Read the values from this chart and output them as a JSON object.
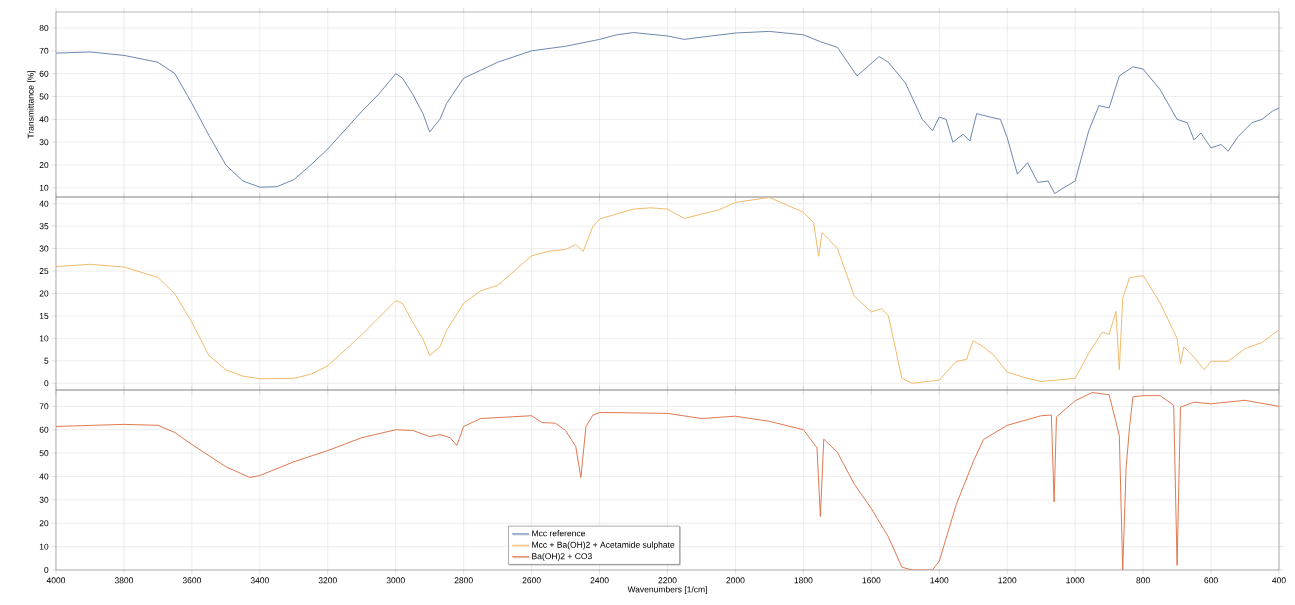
{
  "chart_data": [
    {
      "type": "line",
      "ylabel": "Transmittance [%]",
      "xlim": [
        4000,
        400
      ],
      "xticks": [
        4000,
        3800,
        3600,
        3400,
        3200,
        3000,
        2800,
        2600,
        2400,
        2200,
        2000,
        1800,
        1600,
        1400,
        1200,
        1000,
        800,
        600,
        400
      ],
      "ylim": [
        6,
        87
      ],
      "yticks": [
        10,
        20,
        30,
        40,
        50,
        60,
        70,
        80
      ],
      "grid": true,
      "tick_labels": "y",
      "series": [
        {
          "name": "Mcc reference",
          "color": "#5b7ba6",
          "x": [
            4000,
            3900,
            3800,
            3700,
            3650,
            3600,
            3550,
            3500,
            3450,
            3400,
            3350,
            3300,
            3250,
            3200,
            3100,
            3050,
            3000,
            2980,
            2950,
            2920,
            2900,
            2870,
            2850,
            2800,
            2750,
            2700,
            2600,
            2500,
            2400,
            2350,
            2300,
            2200,
            2150,
            2100,
            2000,
            1900,
            1800,
            1750,
            1700,
            1642,
            1577,
            1550,
            1500,
            1450,
            1420,
            1400,
            1380,
            1360,
            1330,
            1310,
            1290,
            1250,
            1220,
            1200,
            1170,
            1140,
            1110,
            1080,
            1060,
            1040,
            1000,
            960,
            930,
            900,
            870,
            830,
            800,
            750,
            700,
            670,
            650,
            630,
            600,
            570,
            550,
            520,
            480,
            450,
            420,
            400
          ],
          "values": [
            69,
            69.5,
            68,
            65,
            60,
            47,
            33,
            20,
            13,
            10.3,
            10.5,
            13.6,
            20,
            27,
            43.5,
            51,
            60,
            58,
            51,
            42.6,
            34.5,
            40,
            47,
            58,
            61.5,
            65,
            70,
            72,
            75,
            77,
            78,
            76.5,
            75,
            76,
            77.8,
            78.5,
            77,
            74,
            71.5,
            59,
            67.5,
            65,
            56,
            40,
            35,
            41,
            40,
            30,
            33.5,
            30.5,
            42.5,
            41,
            40,
            32,
            16,
            21,
            12.4,
            13,
            7.5,
            9.5,
            13,
            35,
            46,
            45,
            59,
            63,
            62,
            53,
            40,
            38.5,
            31,
            34,
            27.5,
            29,
            26,
            32.5,
            38.5,
            40,
            43.5,
            45
          ]
        }
      ]
    },
    {
      "type": "line",
      "xlim": [
        4000,
        400
      ],
      "xticks": [
        4000,
        3800,
        3600,
        3400,
        3200,
        3000,
        2800,
        2600,
        2400,
        2200,
        2000,
        1800,
        1600,
        1400,
        1200,
        1000,
        800,
        600,
        400
      ],
      "ylim": [
        -1.5,
        41.5
      ],
      "yticks": [
        0,
        5,
        10,
        15,
        20,
        25,
        30,
        35,
        40
      ],
      "grid": true,
      "tick_labels": "y",
      "series": [
        {
          "name": "Mcc + Ba(OH)2 + Acetamide sulphate",
          "color": "#f0b25a",
          "x": [
            4000,
            3900,
            3800,
            3700,
            3650,
            3600,
            3550,
            3500,
            3450,
            3400,
            3300,
            3250,
            3200,
            3100,
            3000,
            2980,
            2950,
            2920,
            2900,
            2870,
            2850,
            2800,
            2750,
            2700,
            2600,
            2550,
            2500,
            2470,
            2448,
            2420,
            2400,
            2300,
            2250,
            2200,
            2150,
            2100,
            2050,
            2000,
            1900,
            1800,
            1770,
            1755,
            1745,
            1700,
            1650,
            1600,
            1570,
            1550,
            1510,
            1480,
            1400,
            1350,
            1320,
            1300,
            1270,
            1240,
            1200,
            1150,
            1100,
            1000,
            960,
            920,
            900,
            880,
            870,
            860,
            840,
            800,
            750,
            700,
            690,
            680,
            650,
            620,
            600,
            550,
            500,
            450,
            400
          ],
          "values": [
            26,
            26.5,
            25.9,
            23.6,
            19.9,
            13.6,
            6.2,
            3,
            1.6,
            1,
            1.1,
            2,
            3.9,
            10.8,
            18.4,
            17.8,
            13.6,
            9.9,
            6.2,
            8.1,
            11.8,
            17.8,
            20.6,
            21.8,
            28.4,
            29.4,
            29.8,
            30.9,
            29.4,
            34.9,
            36.6,
            38.8,
            39.1,
            38.8,
            36.7,
            37.7,
            38.6,
            40.3,
            41.4,
            38.1,
            35.8,
            28.3,
            33.6,
            30.1,
            19.4,
            15.9,
            16.6,
            15.1,
            1.1,
            0,
            0.7,
            4.9,
            5.3,
            9.5,
            8.1,
            6.3,
            2.5,
            1.3,
            0.4,
            1.1,
            6.7,
            11.4,
            10.9,
            16,
            3,
            18.9,
            23.5,
            24,
            17.9,
            10,
            4.4,
            8.1,
            5.8,
            3,
            4.9,
            4.9,
            7.7,
            9.1,
            11.9
          ]
        }
      ]
    },
    {
      "type": "line",
      "xlabel": "Wavenumbers [1/cm]",
      "xlim": [
        4000,
        400
      ],
      "xticks": [
        4000,
        3800,
        3600,
        3400,
        3200,
        3000,
        2800,
        2600,
        2400,
        2200,
        2000,
        1800,
        1600,
        1400,
        1200,
        1000,
        800,
        600,
        400
      ],
      "ylim": [
        0,
        77
      ],
      "yticks": [
        0,
        10,
        20,
        30,
        40,
        50,
        60,
        70
      ],
      "grid": true,
      "legend": "bottom",
      "series": [
        {
          "name": "Ba(OH)2 + CO3",
          "color": "#dd6a3c",
          "x": [
            4000,
            3800,
            3700,
            3650,
            3600,
            3500,
            3430,
            3400,
            3300,
            3200,
            3100,
            3000,
            2950,
            2900,
            2870,
            2840,
            2820,
            2800,
            2750,
            2600,
            2570,
            2530,
            2500,
            2470,
            2455,
            2440,
            2420,
            2400,
            2200,
            2100,
            2000,
            1900,
            1800,
            1760,
            1750,
            1740,
            1700,
            1650,
            1600,
            1550,
            1510,
            1480,
            1420,
            1400,
            1350,
            1300,
            1270,
            1230,
            1200,
            1100,
            1070,
            1062,
            1055,
            1000,
            950,
            900,
            870,
            860,
            850,
            840,
            830,
            800,
            750,
            710,
            700,
            690,
            650,
            600,
            500,
            400
          ],
          "values": [
            61.4,
            62.3,
            61.9,
            58.8,
            53.7,
            44.2,
            39.6,
            40.4,
            46.3,
            51.1,
            56.6,
            60,
            59.7,
            57.1,
            57.9,
            56.6,
            53.3,
            61.4,
            64.8,
            66,
            63.1,
            62.8,
            59.7,
            52.8,
            39.6,
            61.4,
            66.2,
            67.4,
            67,
            64.8,
            65.8,
            63.6,
            60,
            52.3,
            22.9,
            56,
            50.4,
            36.7,
            26.3,
            14.2,
            1.2,
            0,
            0,
            3.8,
            28,
            46.3,
            55.8,
            59.3,
            61.9,
            66,
            66.3,
            29.1,
            65.5,
            72.4,
            75.9,
            75,
            57.5,
            0,
            43.7,
            61,
            74.1,
            74.6,
            74.6,
            70.5,
            2,
            69.7,
            71.8,
            71.1,
            72.6,
            70
          ]
        }
      ]
    }
  ]
}
